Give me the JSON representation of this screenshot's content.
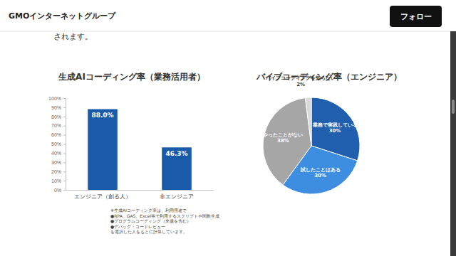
{
  "header": {
    "brand": "GMOインターネットグループ",
    "button": "フォロー"
  },
  "slide_text": "されます。",
  "chart_data": [
    {
      "type": "bar",
      "title": "生成AIコーディング率（業務活用者）",
      "categories": [
        "エンジニア（創る人）",
        "非エンジニア"
      ],
      "values": [
        88.0,
        46.3
      ],
      "value_labels": [
        "88.0%",
        "46.3%"
      ],
      "color": "#1a5aab",
      "ylim": [
        0,
        100
      ],
      "yticks": [
        {
          "value": 0,
          "label": "0%"
        },
        {
          "value": 10,
          "label": "10%"
        },
        {
          "value": 20,
          "label": "20%"
        },
        {
          "value": 30,
          "label": "30%"
        },
        {
          "value": 40,
          "label": "40%"
        },
        {
          "value": 50,
          "label": "50%"
        },
        {
          "value": 60,
          "label": "60%"
        },
        {
          "value": 70,
          "label": "70%"
        },
        {
          "value": 80,
          "label": "80%"
        },
        {
          "value": 90,
          "label": "90%"
        },
        {
          "value": 100,
          "label": "100%"
        }
      ],
      "grid": false,
      "data_labels": true,
      "annotations": [
        "※生成AIコーディング率は、利用用途で",
        "●RPA、GAS、Excel等で利用するスクリプトや関数生成",
        "●プログラムコーディング（支援を含む）",
        "●デバッグ・コードレビュー",
        "を選択した人をもとに計算しています。"
      ]
    },
    {
      "type": "pie",
      "title": "バイブコーディング率（エンジニア）",
      "categories": [
        "業務で実践している",
        "試したことはある",
        "やったことがない",
        "バイブコーディングを知らない"
      ],
      "values": [
        30,
        30,
        38,
        2
      ],
      "value_labels": [
        "30%",
        "30%",
        "38%",
        "2%"
      ],
      "colors": [
        "#1f5fae",
        "#3d8ee0",
        "#a6a6a6",
        "#d9d9d9"
      ],
      "data_labels": true
    }
  ]
}
